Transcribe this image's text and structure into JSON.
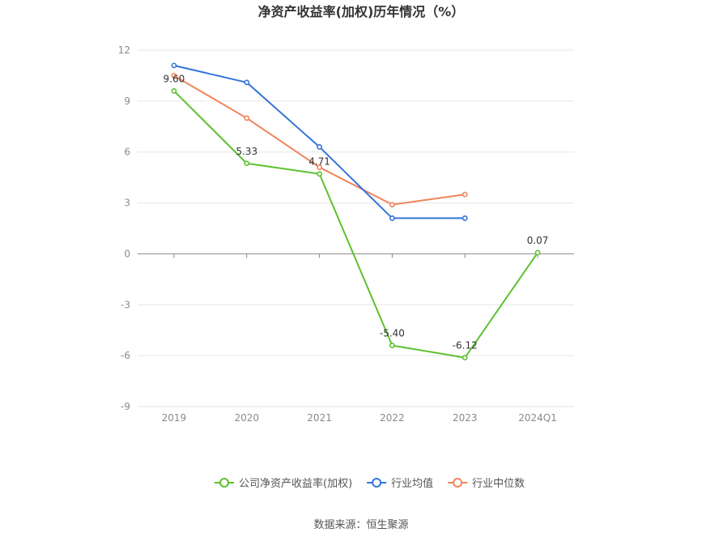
{
  "chart_data": {
    "type": "line",
    "title": "净资产收益率(加权)历年情况（%）",
    "categories": [
      "2019",
      "2020",
      "2021",
      "2022",
      "2023",
      "2024Q1"
    ],
    "yticks": [
      "12",
      "9",
      "6",
      "3",
      "0",
      "-3",
      "-6",
      "-9"
    ],
    "ylim": [
      -9,
      12
    ],
    "grid": true,
    "legend_position": "bottom",
    "series": [
      {
        "name": "公司净资产收益率(加权)",
        "color": "#5dc12f",
        "values": [
          9.6,
          5.33,
          4.71,
          -5.4,
          -6.12,
          0.07
        ],
        "labels": [
          "9.60",
          "5.33",
          "4.71",
          "-5.40",
          "-6.12",
          "0.07"
        ]
      },
      {
        "name": "行业均值",
        "color": "#3574d8",
        "values": [
          11.1,
          10.1,
          6.3,
          2.1,
          2.1,
          null
        ]
      },
      {
        "name": "行业中位数",
        "color": "#f0845a",
        "values": [
          10.5,
          8.0,
          5.1,
          2.9,
          3.5,
          null
        ]
      }
    ]
  },
  "source": "数据来源：恒生聚源"
}
